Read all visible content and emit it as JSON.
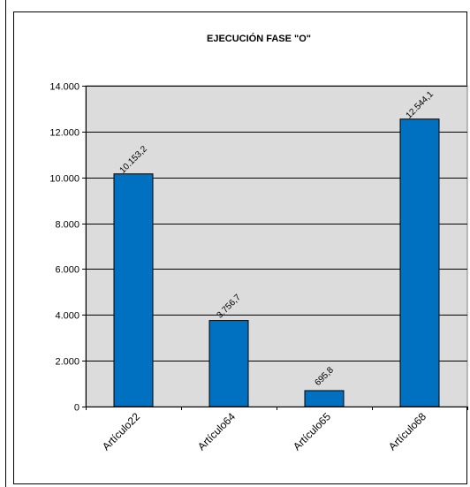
{
  "chart_data": {
    "type": "bar",
    "title": "EJECUCIÓN FASE \"O\"",
    "xlabel": "",
    "ylabel": "",
    "categories": [
      "Artículo22",
      "Artículo64",
      "Artículo65",
      "Artículo68"
    ],
    "values": [
      10153.2,
      3756.7,
      695.8,
      12544.1
    ],
    "data_labels": [
      "10.153,2",
      "3.756,7",
      "695,8",
      "12.544,1"
    ],
    "ylim": [
      0,
      14000
    ],
    "yticks": [
      0,
      2000,
      4000,
      6000,
      8000,
      10000,
      12000,
      14000
    ],
    "ytick_labels": [
      "0",
      "2.000",
      "4.000",
      "6.000",
      "8.000",
      "10.000",
      "12.000",
      "14.000"
    ],
    "grid": true,
    "legend": "none",
    "colors": {
      "bar": "#0070C0",
      "plot_background": "#DCDCDC",
      "bar_edge": "#000000"
    }
  }
}
